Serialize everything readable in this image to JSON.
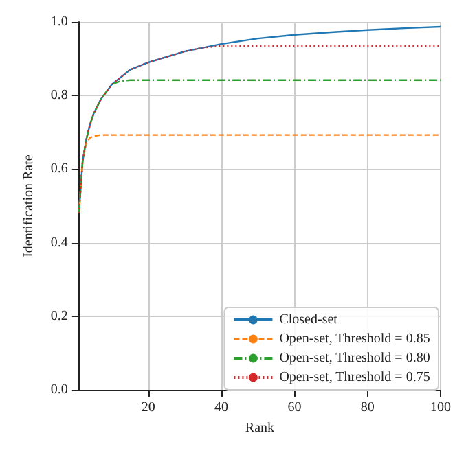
{
  "chart_data": {
    "type": "line",
    "xlabel": "Rank",
    "ylabel": "Identification Rate",
    "xlim": [
      1,
      100
    ],
    "ylim": [
      0,
      1
    ],
    "xticks": [
      20,
      40,
      60,
      80,
      100
    ],
    "yticks": [
      {
        "value": 0,
        "label": "0.0"
      },
      0.2,
      0.4,
      0.6,
      0.8,
      {
        "value": 1,
        "label": "1.0"
      }
    ],
    "grid": true,
    "legend": "bottom right",
    "marker": "none",
    "series": [
      {
        "name": "Closed-set",
        "color": "#1f77b4",
        "line_style": "solid",
        "x": [
          1,
          2,
          3,
          4,
          5,
          7,
          10,
          15,
          20,
          30,
          40,
          50,
          60,
          70,
          80,
          90,
          100
        ],
        "values": [
          0.48,
          0.62,
          0.68,
          0.72,
          0.75,
          0.79,
          0.83,
          0.87,
          0.89,
          0.92,
          0.94,
          0.955,
          0.965,
          0.972,
          0.978,
          0.983,
          0.987
        ]
      },
      {
        "name": "Open-set, Threshold = 0.85",
        "color": "#ff7f0e",
        "line_style": "dashed",
        "x": [
          1,
          2,
          3,
          4,
          5,
          7,
          100
        ],
        "values": [
          0.48,
          0.62,
          0.67,
          0.685,
          0.69,
          0.693,
          0.693
        ]
      },
      {
        "name": "Open-set, Threshold = 0.80",
        "color": "#2ca02c",
        "line_style": "dashdot",
        "x": [
          1,
          2,
          3,
          4,
          5,
          7,
          10,
          12,
          15,
          100
        ],
        "values": [
          0.48,
          0.62,
          0.68,
          0.72,
          0.75,
          0.79,
          0.83,
          0.838,
          0.842,
          0.842
        ]
      },
      {
        "name": "Open-set, Threshold = 0.75",
        "color": "#d62728",
        "line_style": "dotted",
        "x": [
          1,
          2,
          3,
          4,
          5,
          7,
          10,
          15,
          20,
          30,
          35,
          40,
          100
        ],
        "values": [
          0.48,
          0.62,
          0.68,
          0.72,
          0.75,
          0.79,
          0.83,
          0.87,
          0.89,
          0.92,
          0.93,
          0.935,
          0.935
        ]
      }
    ]
  }
}
